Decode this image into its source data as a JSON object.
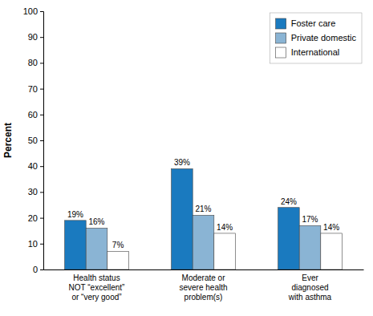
{
  "chart_data": {
    "type": "bar",
    "categories": [
      "Health status\nNOT “excellent”\nor “very good”",
      "Moderate or\nsevere health\nproblem(s)",
      "Ever\ndiagnosed\nwith asthma"
    ],
    "series": [
      {
        "name": "Foster care",
        "color": "#1a7abf",
        "values": [
          19,
          39,
          24
        ],
        "value_labels": [
          "19%",
          "39%",
          "24%"
        ]
      },
      {
        "name": "Private domestic",
        "color": "#8ab4d4",
        "values": [
          16,
          21,
          17
        ],
        "value_labels": [
          "16%",
          "21%",
          "17%"
        ]
      },
      {
        "name": "International",
        "color": "#ffffff",
        "values": [
          7,
          14,
          14
        ],
        "value_labels": [
          "7%",
          "14%",
          "14%"
        ]
      }
    ],
    "ylabel": "Percent",
    "ylim": [
      0,
      100
    ],
    "yticks": [
      0,
      10,
      20,
      30,
      40,
      50,
      60,
      70,
      80,
      90,
      100
    ],
    "grid": false,
    "legend": "upper-right",
    "data_labels": true
  }
}
